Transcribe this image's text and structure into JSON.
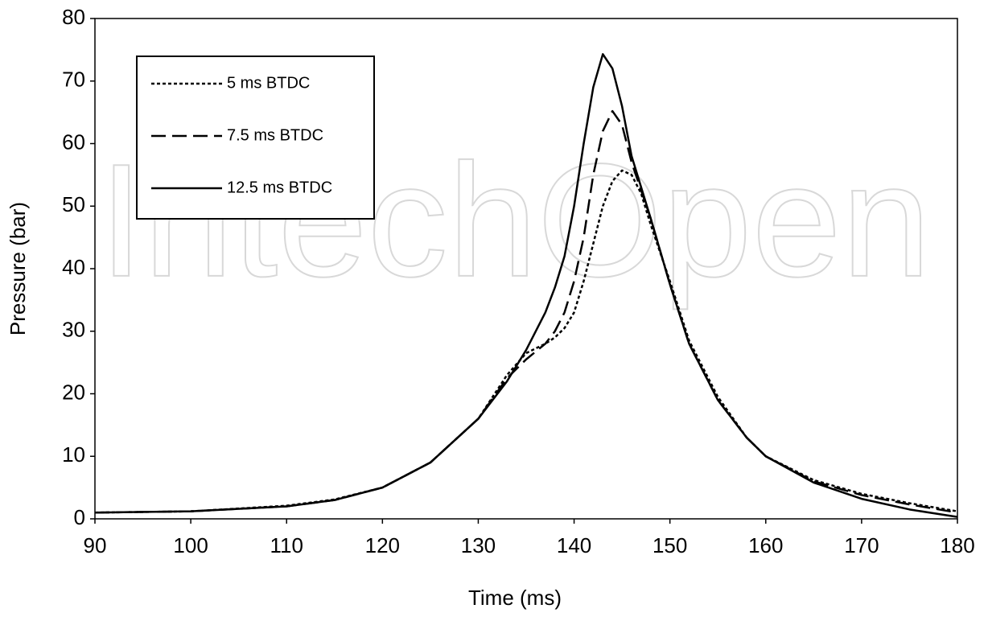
{
  "chart_data": {
    "type": "line",
    "watermark": "IntechOpen",
    "xlabel": "Time (ms)",
    "ylabel": "Pressure (bar)",
    "x": [
      90,
      100,
      110,
      115,
      120,
      125,
      130,
      133,
      135,
      137,
      138,
      139,
      140,
      141,
      142,
      143,
      144,
      145,
      146,
      147,
      148,
      150,
      152,
      155,
      158,
      160,
      165,
      170,
      175,
      180
    ],
    "series": [
      {
        "name": "5 ms BTDC",
        "color": "#000000",
        "dash": "dotted",
        "values": [
          1,
          1.2,
          2.1,
          3.1,
          5,
          9,
          16,
          23,
          26.5,
          28,
          29,
          30.5,
          33,
          38,
          44,
          50,
          54,
          55.7,
          55,
          52,
          47,
          38,
          28.5,
          19.5,
          13,
          10,
          6.2,
          4,
          2.5,
          1.2
        ]
      },
      {
        "name": "7.5 ms BTDC",
        "color": "#000000",
        "dash": "dashed",
        "values": [
          1,
          1.2,
          2,
          3,
          5,
          9,
          16,
          22.5,
          25.5,
          28,
          30,
          33,
          38,
          45,
          55,
          62,
          65.2,
          63,
          57,
          52.5,
          48,
          37.5,
          28,
          19,
          13,
          10,
          6,
          3.8,
          2.3,
          1
        ]
      },
      {
        "name": "12.5 ms BTDC",
        "color": "#000000",
        "dash": "solid",
        "values": [
          1,
          1.2,
          2,
          3,
          5,
          9,
          16,
          22,
          27,
          33,
          37,
          42,
          50,
          60,
          69,
          74.3,
          72,
          66,
          58,
          53,
          48,
          37.5,
          28,
          19,
          13,
          10,
          5.8,
          3.2,
          1.5,
          0.3
        ]
      }
    ],
    "xlim": [
      90,
      180
    ],
    "xticks": [
      90,
      100,
      110,
      120,
      130,
      140,
      150,
      160,
      170,
      180
    ],
    "ylim": [
      0,
      80
    ],
    "yticks": [
      0,
      10,
      20,
      30,
      40,
      50,
      60,
      70,
      80
    ],
    "legend": "upper-left",
    "grid": false
  }
}
